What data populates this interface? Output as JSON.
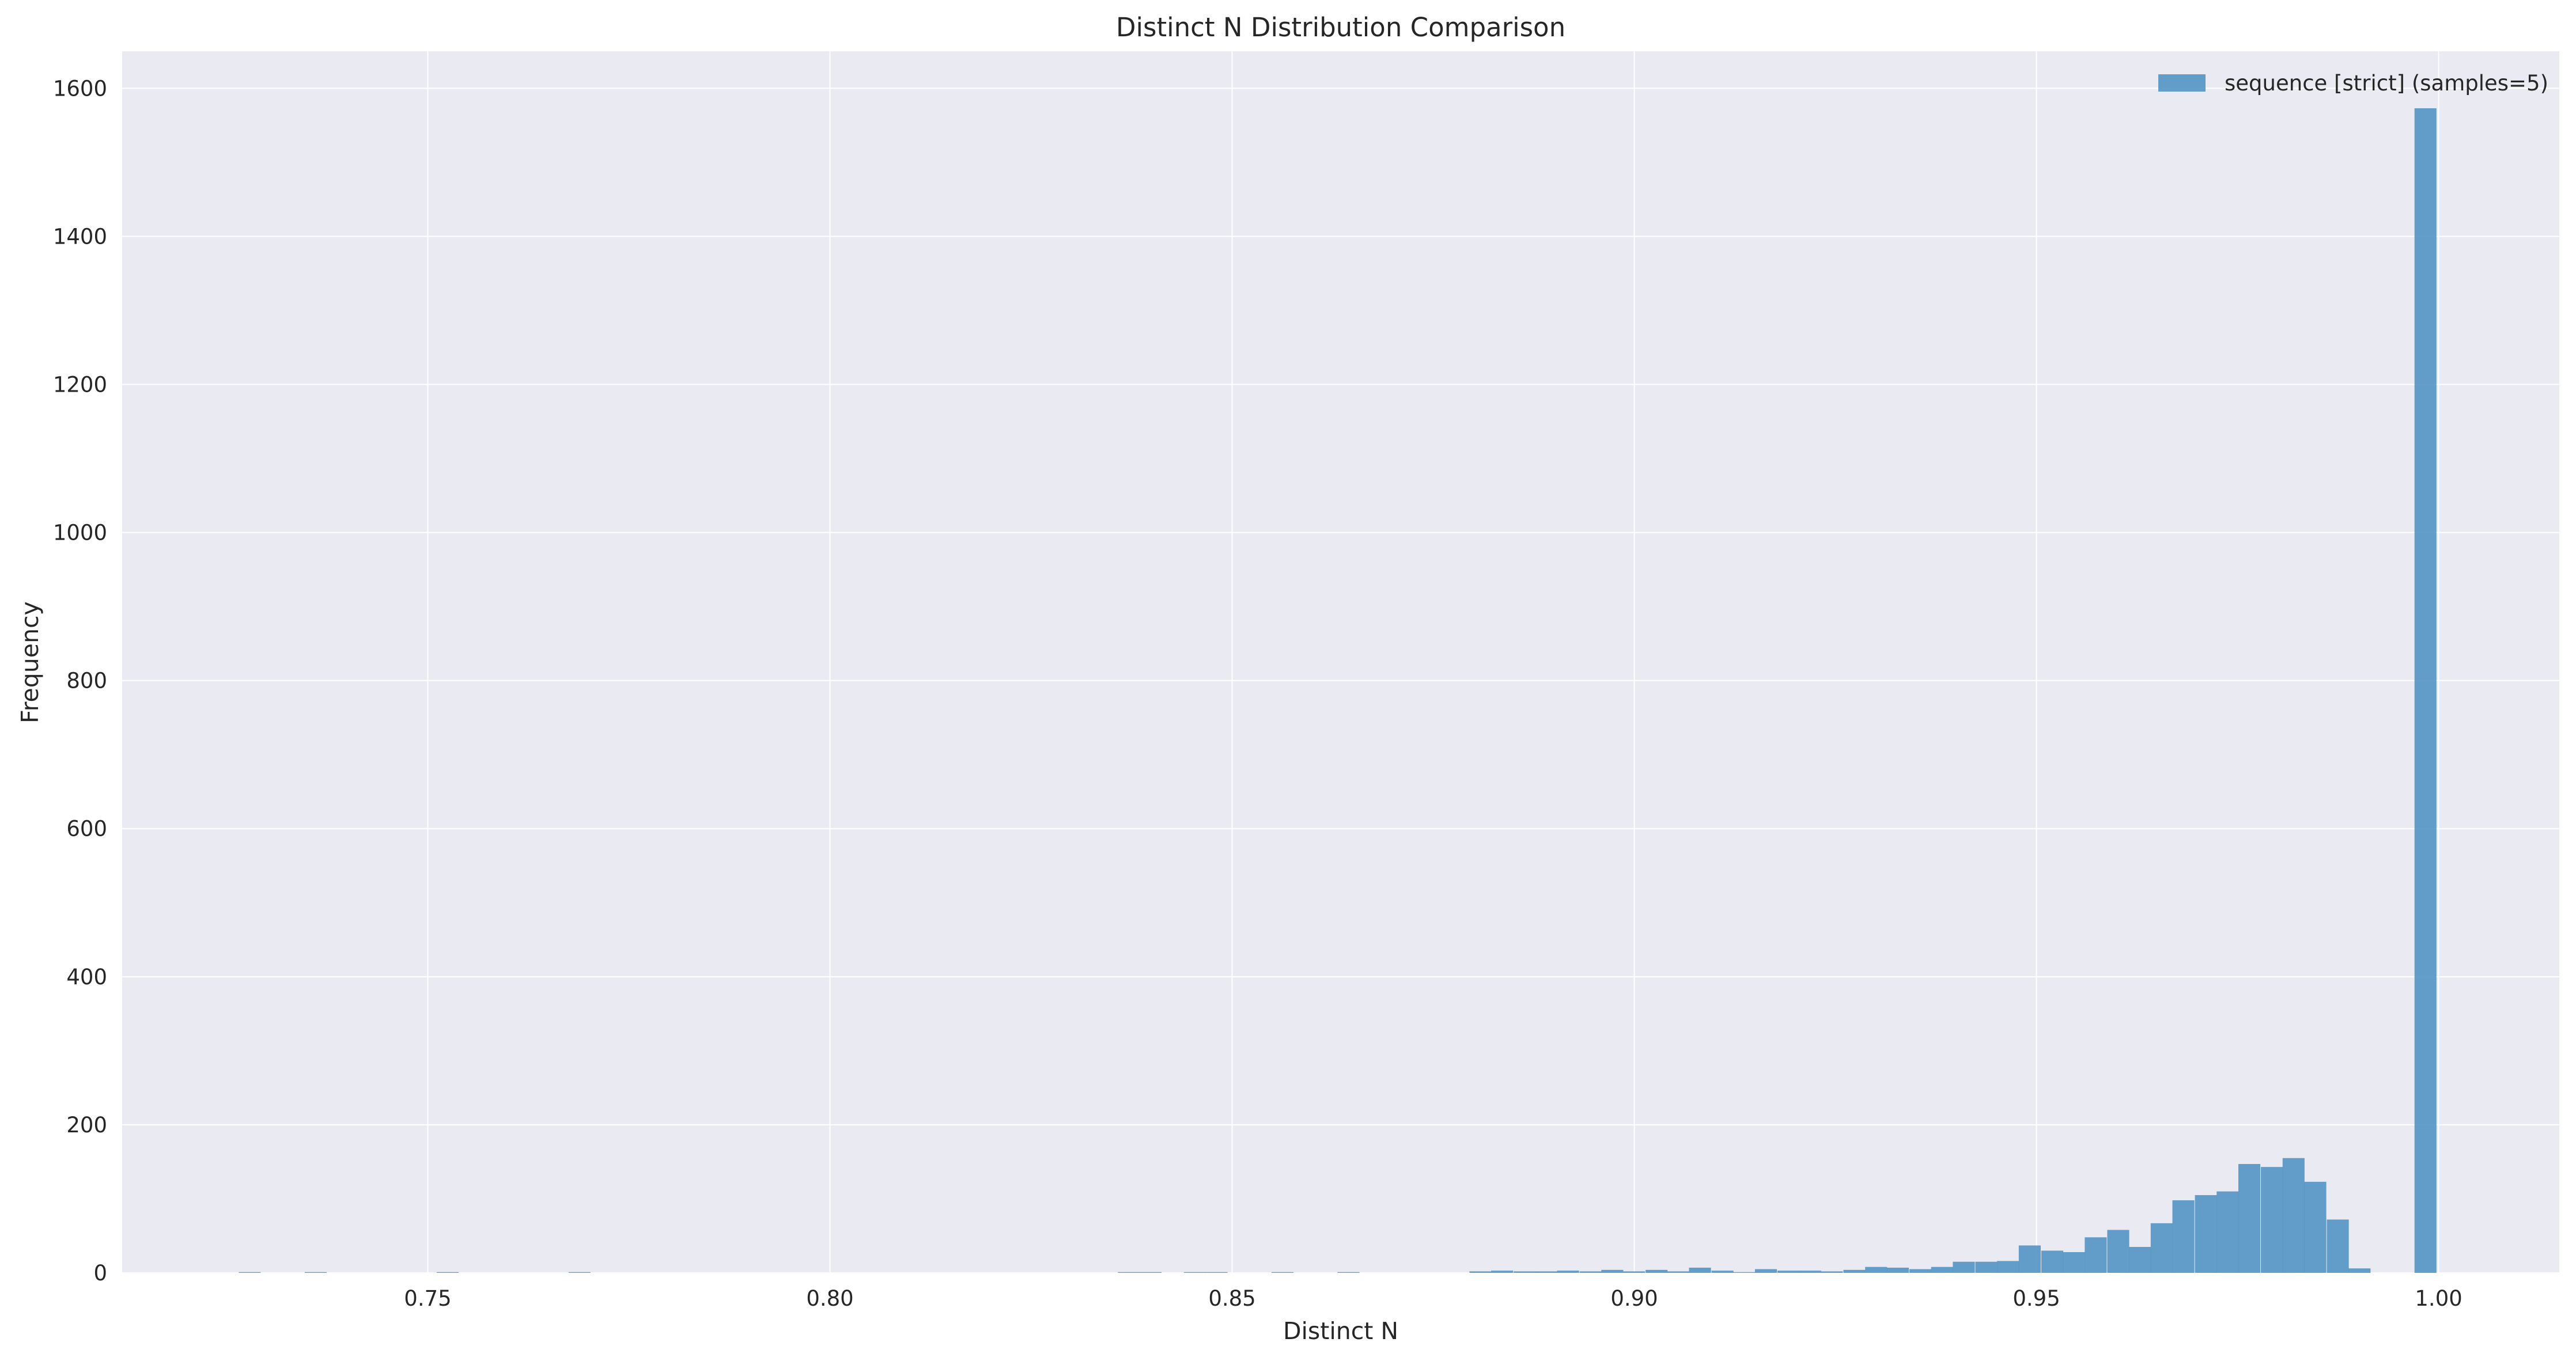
{
  "chart_data": {
    "type": "bar",
    "title": "Distinct N Distribution Comparison",
    "xlabel": "Distinct N",
    "ylabel": "Frequency",
    "xlim": [
      0.712,
      1.015
    ],
    "ylim": [
      0,
      1650
    ],
    "xticks": [
      0.75,
      0.8,
      0.85,
      0.9,
      0.95,
      1.0
    ],
    "xtick_labels": [
      "0.75",
      "0.80",
      "0.85",
      "0.90",
      "0.95",
      "1.00"
    ],
    "yticks": [
      0,
      200,
      400,
      600,
      800,
      1000,
      1200,
      1400,
      1600
    ],
    "ytick_labels": [
      "0",
      "200",
      "400",
      "600",
      "800",
      "1000",
      "1200",
      "1400",
      "1600"
    ],
    "grid": true,
    "legend_position": "top-right",
    "bin_width": 0.00273,
    "series": [
      {
        "name": "sequence [strict] (samples=5)",
        "color": "#4f91c2",
        "bin_starts": [
          0.7265,
          0.7347,
          0.7511,
          0.7675,
          0.8358,
          0.8385,
          0.844,
          0.8467,
          0.8549,
          0.8631,
          0.8795,
          0.8822,
          0.885,
          0.8877,
          0.8904,
          0.8932,
          0.8959,
          0.8986,
          0.9014,
          0.9041,
          0.9068,
          0.9096,
          0.9123,
          0.915,
          0.9178,
          0.9205,
          0.9232,
          0.926,
          0.9287,
          0.9314,
          0.9342,
          0.9369,
          0.9396,
          0.9424,
          0.9451,
          0.9478,
          0.9506,
          0.9533,
          0.956,
          0.9588,
          0.9615,
          0.9642,
          0.9669,
          0.9697,
          0.9724,
          0.9751,
          0.9779,
          0.9806,
          0.9833,
          0.9861,
          0.9888,
          0.997
        ],
        "counts": [
          1,
          1,
          1,
          1,
          1,
          1,
          1,
          1,
          1,
          1,
          2,
          3,
          2,
          2,
          3,
          2,
          4,
          2,
          4,
          2,
          7,
          3,
          1,
          5,
          3,
          3,
          2,
          4,
          8,
          7,
          5,
          8,
          15,
          15,
          16,
          37,
          30,
          28,
          48,
          58,
          35,
          67,
          98,
          105,
          110,
          147,
          143,
          155,
          123,
          72,
          6,
          1573
        ]
      }
    ]
  }
}
